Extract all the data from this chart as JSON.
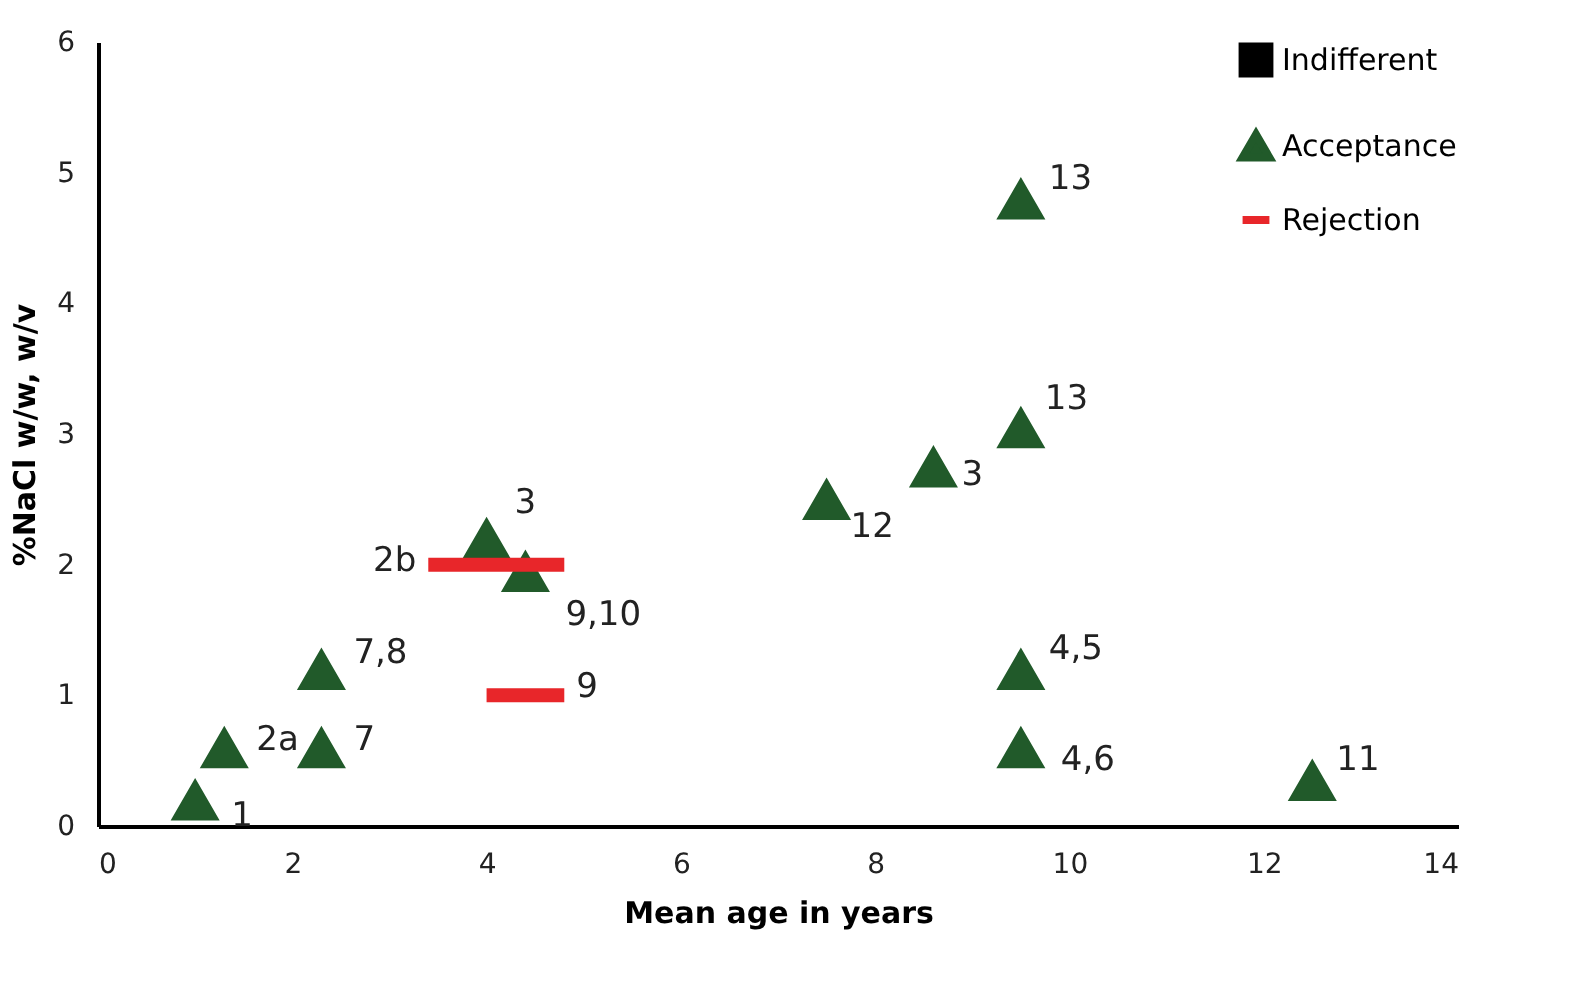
{
  "chart_data": {
    "type": "scatter",
    "xlabel": "Mean age in years",
    "ylabel": "%NaCl w/w, w/v",
    "xlim": [
      0,
      14
    ],
    "xticks": [
      0,
      2,
      4,
      6,
      8,
      10,
      12,
      14
    ],
    "ylim": [
      0,
      6
    ],
    "yticks": [
      0,
      1,
      2,
      3,
      4,
      5,
      6
    ],
    "grid": false,
    "legend": "top right",
    "series": [
      {
        "name": "Indifferent",
        "color": "#000000",
        "marker": "square"
      },
      {
        "name": "Acceptance",
        "color": "#215a2a",
        "marker": "triangle",
        "x": [
          1.0,
          1.3,
          2.3,
          2.3,
          4.0,
          4.4,
          7.5,
          8.6,
          9.5,
          9.5,
          9.5,
          9.5,
          12.5
        ],
        "values": [
          0.2,
          0.6,
          0.6,
          1.2,
          2.2,
          1.95,
          2.5,
          2.75,
          3.05,
          4.8,
          1.2,
          0.6,
          0.35
        ]
      },
      {
        "name": "Rejection",
        "type": "line",
        "color": "#e8262a",
        "marker": "none",
        "x": [
          3.4,
          4.8,
          4.4,
          4.0,
          4.8
        ],
        "values": [
          2,
          2,
          null,
          1,
          1
        ]
      }
    ],
    "annotations": [
      {
        "text": "1",
        "x": 1.0,
        "y": 0.2
      },
      {
        "text": "2a",
        "x": 1.3,
        "y": 0.6
      },
      {
        "text": "7",
        "x": 2.3,
        "y": 0.6
      },
      {
        "text": "7,8",
        "x": 2.3,
        "y": 1.2
      },
      {
        "text": "3",
        "x": 4.0,
        "y": 2.2
      },
      {
        "text": "9,10",
        "x": 4.4,
        "y": 1.95
      },
      {
        "text": "12",
        "x": 7.5,
        "y": 2.5
      },
      {
        "text": "3",
        "x": 8.6,
        "y": 2.75
      },
      {
        "text": "13",
        "x": 9.5,
        "y": 3.05
      },
      {
        "text": "13",
        "x": 9.5,
        "y": 4.8
      },
      {
        "text": "4,5",
        "x": 9.5,
        "y": 1.2
      },
      {
        "text": "4,6",
        "x": 9.5,
        "y": 0.6
      },
      {
        "text": "11",
        "x": 12.5,
        "y": 0.35
      },
      {
        "text": "2b",
        "x": 3.4,
        "y": 2
      },
      {
        "text": "9",
        "x": 4.8,
        "y": 1
      }
    ]
  }
}
